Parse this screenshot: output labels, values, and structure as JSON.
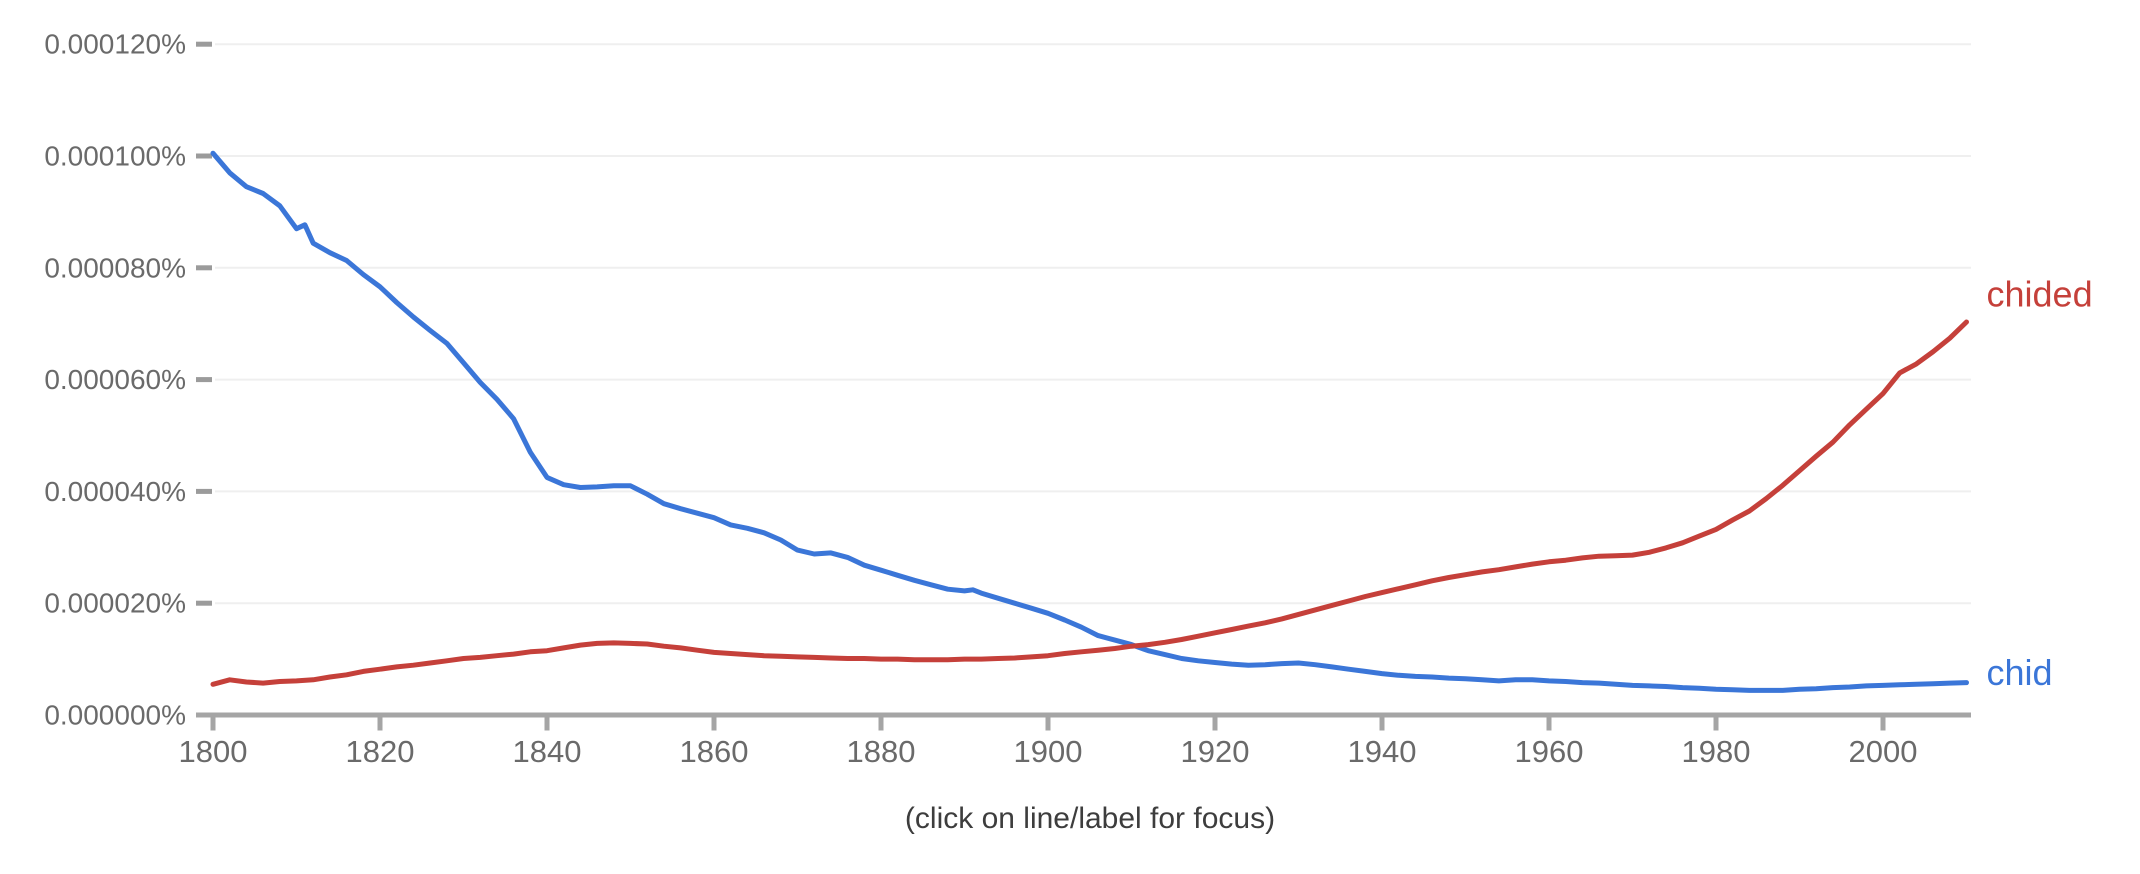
{
  "footer": {
    "hint_label": "(click on line/label for focus)"
  },
  "colors": {
    "chid_blue": "#3b76d8",
    "chided_red": "#c5403a",
    "axis_gray": "#a5a5a5",
    "grid_gray": "#efefef",
    "axis_text_gray": "#6a6a6a",
    "hint_text_gray": "#3d3d3d"
  },
  "chart_data": {
    "type": "line",
    "title": "",
    "xlabel": "",
    "ylabel": "",
    "grid": "horizontal-only",
    "legend_position": "line-end-labels",
    "value_unit": "1e-6 percent (0.000001%)",
    "x_axis": {
      "min": 1800,
      "max": 2010,
      "ticks": [
        {
          "year": 1800,
          "label": "1800"
        },
        {
          "year": 1820,
          "label": "1820"
        },
        {
          "year": 1840,
          "label": "1840"
        },
        {
          "year": 1860,
          "label": "1860"
        },
        {
          "year": 1880,
          "label": "1880"
        },
        {
          "year": 1900,
          "label": "1900"
        },
        {
          "year": 1920,
          "label": "1920"
        },
        {
          "year": 1940,
          "label": "1940"
        },
        {
          "year": 1960,
          "label": "1960"
        },
        {
          "year": 1980,
          "label": "1980"
        },
        {
          "year": 2000,
          "label": "2000"
        }
      ]
    },
    "y_axis": {
      "min": 0,
      "max": 125,
      "ticks": [
        {
          "value": 0,
          "label": "0.000000%"
        },
        {
          "value": 20,
          "label": "0.000020%"
        },
        {
          "value": 40,
          "label": "0.000040%"
        },
        {
          "value": 60,
          "label": "0.000060%"
        },
        {
          "value": 80,
          "label": "0.000080%"
        },
        {
          "value": 100,
          "label": "0.000100%"
        },
        {
          "value": 120,
          "label": "0.000120%"
        }
      ]
    },
    "series": [
      {
        "name": "chid",
        "color": "#3b76d8",
        "label_dy": -10,
        "points": [
          [
            1800,
            100.5
          ],
          [
            1802,
            97.0
          ],
          [
            1804,
            94.5
          ],
          [
            1806,
            93.3
          ],
          [
            1808,
            91.1
          ],
          [
            1810,
            87.0
          ],
          [
            1811,
            87.7
          ],
          [
            1812,
            84.4
          ],
          [
            1814,
            82.7
          ],
          [
            1816,
            81.3
          ],
          [
            1818,
            78.8
          ],
          [
            1820,
            76.6
          ],
          [
            1822,
            73.8
          ],
          [
            1824,
            71.2
          ],
          [
            1826,
            68.8
          ],
          [
            1828,
            66.5
          ],
          [
            1830,
            63.0
          ],
          [
            1832,
            59.5
          ],
          [
            1834,
            56.5
          ],
          [
            1836,
            53.0
          ],
          [
            1838,
            47.0
          ],
          [
            1840,
            42.5
          ],
          [
            1842,
            41.2
          ],
          [
            1844,
            40.7
          ],
          [
            1846,
            40.8
          ],
          [
            1848,
            41.0
          ],
          [
            1850,
            41.0
          ],
          [
            1852,
            39.5
          ],
          [
            1854,
            37.8
          ],
          [
            1856,
            36.9
          ],
          [
            1858,
            36.1
          ],
          [
            1860,
            35.3
          ],
          [
            1862,
            34.0
          ],
          [
            1864,
            33.4
          ],
          [
            1866,
            32.6
          ],
          [
            1868,
            31.3
          ],
          [
            1870,
            29.5
          ],
          [
            1872,
            28.8
          ],
          [
            1874,
            29.0
          ],
          [
            1876,
            28.2
          ],
          [
            1878,
            26.8
          ],
          [
            1880,
            25.9
          ],
          [
            1882,
            25.0
          ],
          [
            1884,
            24.1
          ],
          [
            1886,
            23.3
          ],
          [
            1888,
            22.5
          ],
          [
            1890,
            22.2
          ],
          [
            1891,
            22.4
          ],
          [
            1892,
            21.8
          ],
          [
            1894,
            20.9
          ],
          [
            1896,
            20.0
          ],
          [
            1898,
            19.1
          ],
          [
            1900,
            18.2
          ],
          [
            1902,
            17.0
          ],
          [
            1904,
            15.7
          ],
          [
            1906,
            14.2
          ],
          [
            1908,
            13.4
          ],
          [
            1910,
            12.6
          ],
          [
            1912,
            11.5
          ],
          [
            1914,
            10.8
          ],
          [
            1916,
            10.1
          ],
          [
            1918,
            9.7
          ],
          [
            1920,
            9.4
          ],
          [
            1922,
            9.1
          ],
          [
            1924,
            8.9
          ],
          [
            1926,
            9.0
          ],
          [
            1928,
            9.2
          ],
          [
            1930,
            9.3
          ],
          [
            1932,
            9.0
          ],
          [
            1934,
            8.6
          ],
          [
            1936,
            8.2
          ],
          [
            1938,
            7.8
          ],
          [
            1940,
            7.4
          ],
          [
            1942,
            7.1
          ],
          [
            1944,
            6.9
          ],
          [
            1946,
            6.8
          ],
          [
            1948,
            6.6
          ],
          [
            1950,
            6.5
          ],
          [
            1952,
            6.3
          ],
          [
            1954,
            6.1
          ],
          [
            1956,
            6.3
          ],
          [
            1958,
            6.3
          ],
          [
            1960,
            6.1
          ],
          [
            1962,
            6.0
          ],
          [
            1964,
            5.8
          ],
          [
            1966,
            5.7
          ],
          [
            1968,
            5.5
          ],
          [
            1970,
            5.3
          ],
          [
            1972,
            5.2
          ],
          [
            1974,
            5.1
          ],
          [
            1976,
            4.9
          ],
          [
            1978,
            4.8
          ],
          [
            1980,
            4.6
          ],
          [
            1982,
            4.5
          ],
          [
            1984,
            4.4
          ],
          [
            1986,
            4.4
          ],
          [
            1988,
            4.4
          ],
          [
            1990,
            4.6
          ],
          [
            1992,
            4.7
          ],
          [
            1994,
            4.9
          ],
          [
            1996,
            5.0
          ],
          [
            1998,
            5.2
          ],
          [
            2000,
            5.3
          ],
          [
            2002,
            5.4
          ],
          [
            2004,
            5.5
          ],
          [
            2006,
            5.6
          ],
          [
            2008,
            5.7
          ],
          [
            2010,
            5.8
          ]
        ]
      },
      {
        "name": "chided",
        "color": "#c5403a",
        "label_dy": -28,
        "points": [
          [
            1800,
            5.5
          ],
          [
            1802,
            6.3
          ],
          [
            1804,
            5.9
          ],
          [
            1806,
            5.7
          ],
          [
            1808,
            6.0
          ],
          [
            1810,
            6.1
          ],
          [
            1812,
            6.3
          ],
          [
            1814,
            6.8
          ],
          [
            1816,
            7.2
          ],
          [
            1818,
            7.8
          ],
          [
            1820,
            8.2
          ],
          [
            1822,
            8.6
          ],
          [
            1824,
            8.9
          ],
          [
            1826,
            9.3
          ],
          [
            1828,
            9.7
          ],
          [
            1830,
            10.1
          ],
          [
            1832,
            10.3
          ],
          [
            1834,
            10.6
          ],
          [
            1836,
            10.9
          ],
          [
            1838,
            11.3
          ],
          [
            1840,
            11.5
          ],
          [
            1842,
            12.0
          ],
          [
            1844,
            12.5
          ],
          [
            1846,
            12.8
          ],
          [
            1848,
            12.9
          ],
          [
            1850,
            12.8
          ],
          [
            1852,
            12.7
          ],
          [
            1854,
            12.3
          ],
          [
            1856,
            12.0
          ],
          [
            1858,
            11.6
          ],
          [
            1860,
            11.2
          ],
          [
            1862,
            11.0
          ],
          [
            1864,
            10.8
          ],
          [
            1866,
            10.6
          ],
          [
            1868,
            10.5
          ],
          [
            1870,
            10.4
          ],
          [
            1872,
            10.3
          ],
          [
            1874,
            10.2
          ],
          [
            1876,
            10.1
          ],
          [
            1878,
            10.1
          ],
          [
            1880,
            10.0
          ],
          [
            1882,
            10.0
          ],
          [
            1884,
            9.9
          ],
          [
            1886,
            9.9
          ],
          [
            1888,
            9.9
          ],
          [
            1890,
            10.0
          ],
          [
            1892,
            10.0
          ],
          [
            1894,
            10.1
          ],
          [
            1896,
            10.2
          ],
          [
            1898,
            10.4
          ],
          [
            1900,
            10.6
          ],
          [
            1902,
            11.0
          ],
          [
            1904,
            11.3
          ],
          [
            1906,
            11.6
          ],
          [
            1908,
            11.9
          ],
          [
            1910,
            12.3
          ],
          [
            1912,
            12.6
          ],
          [
            1914,
            13.0
          ],
          [
            1916,
            13.5
          ],
          [
            1918,
            14.1
          ],
          [
            1920,
            14.7
          ],
          [
            1922,
            15.3
          ],
          [
            1924,
            15.9
          ],
          [
            1926,
            16.5
          ],
          [
            1928,
            17.2
          ],
          [
            1930,
            18.0
          ],
          [
            1932,
            18.8
          ],
          [
            1934,
            19.6
          ],
          [
            1936,
            20.4
          ],
          [
            1938,
            21.2
          ],
          [
            1940,
            21.9
          ],
          [
            1942,
            22.6
          ],
          [
            1944,
            23.3
          ],
          [
            1946,
            24.0
          ],
          [
            1948,
            24.6
          ],
          [
            1950,
            25.1
          ],
          [
            1952,
            25.6
          ],
          [
            1954,
            26.0
          ],
          [
            1956,
            26.5
          ],
          [
            1958,
            27.0
          ],
          [
            1960,
            27.4
          ],
          [
            1962,
            27.7
          ],
          [
            1964,
            28.1
          ],
          [
            1966,
            28.4
          ],
          [
            1968,
            28.5
          ],
          [
            1970,
            28.6
          ],
          [
            1972,
            29.1
          ],
          [
            1974,
            29.9
          ],
          [
            1976,
            30.8
          ],
          [
            1978,
            32.0
          ],
          [
            1980,
            33.2
          ],
          [
            1982,
            34.9
          ],
          [
            1984,
            36.5
          ],
          [
            1986,
            38.7
          ],
          [
            1988,
            41.1
          ],
          [
            1990,
            43.7
          ],
          [
            1992,
            46.3
          ],
          [
            1994,
            48.8
          ],
          [
            1996,
            51.9
          ],
          [
            1998,
            54.7
          ],
          [
            2000,
            57.5
          ],
          [
            2002,
            61.2
          ],
          [
            2004,
            62.8
          ],
          [
            2006,
            65.0
          ],
          [
            2008,
            67.4
          ],
          [
            2010,
            70.3
          ]
        ]
      }
    ]
  }
}
